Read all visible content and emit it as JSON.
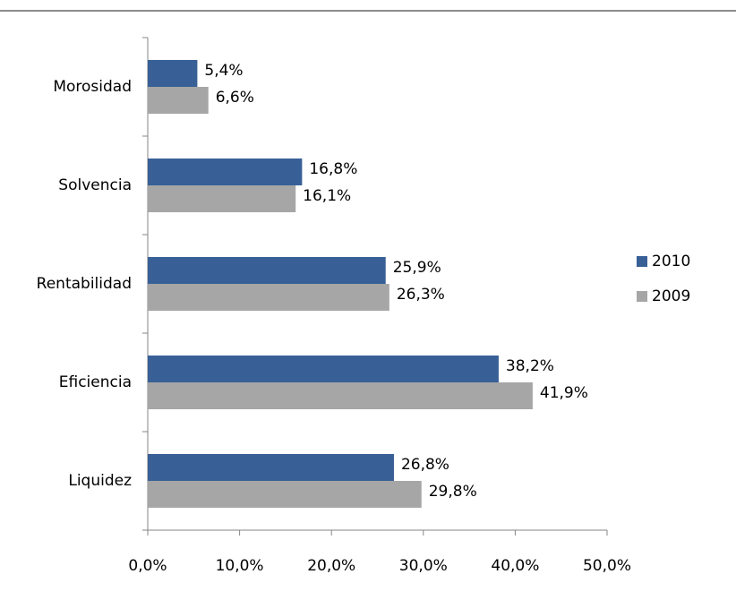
{
  "chart_data": {
    "type": "bar",
    "orientation": "horizontal",
    "categories": [
      "Morosidad",
      "Solvencia",
      "Rentabilidad",
      "Eficiencia",
      "Liquidez"
    ],
    "series": [
      {
        "name": "2010",
        "color": "#386096",
        "values": [
          5.4,
          16.8,
          25.9,
          38.2,
          26.8
        ],
        "value_labels": [
          "5,4%",
          "16,8%",
          "25,9%",
          "38,2%",
          "26,8%"
        ]
      },
      {
        "name": "2009",
        "color": "#a6a6a6",
        "values": [
          6.6,
          16.1,
          26.3,
          41.9,
          29.8
        ],
        "value_labels": [
          "6,6%",
          "16,1%",
          "26,3%",
          "41,9%",
          "29,8%"
        ]
      }
    ],
    "xlim": [
      0,
      50
    ],
    "xticks": [
      {
        "value": 0,
        "label": "0,0%"
      },
      {
        "value": 10,
        "label": "10,0%"
      },
      {
        "value": 20,
        "label": "20,0%"
      },
      {
        "value": 30,
        "label": "30,0%"
      },
      {
        "value": 40,
        "label": "40,0%"
      },
      {
        "value": 50,
        "label": "50,0%"
      }
    ],
    "grid": false,
    "legend": "right"
  }
}
